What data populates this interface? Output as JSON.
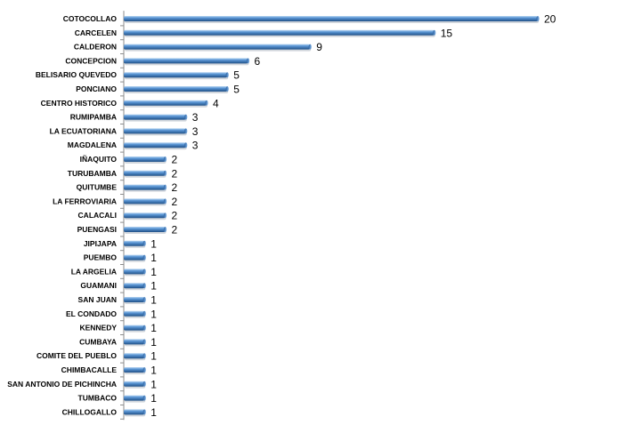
{
  "chart_data": {
    "type": "bar",
    "orientation": "horizontal",
    "categories": [
      "COTOCOLLAO",
      "CARCELEN",
      "CALDERON",
      "CONCEPCION",
      "BELISARIO QUEVEDO",
      "PONCIANO",
      "CENTRO HISTORICO",
      "RUMIPAMBA",
      "LA ECUATORIANA",
      "MAGDALENA",
      "IÑAQUITO",
      "TURUBAMBA",
      "QUITUMBE",
      "LA FERROVIARIA",
      "CALACALI",
      "PUENGASI",
      "JIPIJAPA",
      "PUEMBO",
      "LA ARGELIA",
      "GUAMANI",
      "SAN JUAN",
      "EL CONDADO",
      "KENNEDY",
      "CUMBAYA",
      "COMITE DEL PUEBLO",
      "CHIMBACALLE",
      "SAN ANTONIO DE PICHINCHA",
      "TUMBACO",
      "CHILLOGALLO"
    ],
    "values": [
      20,
      15,
      9,
      6,
      5,
      5,
      4,
      3,
      3,
      3,
      2,
      2,
      2,
      2,
      2,
      2,
      1,
      1,
      1,
      1,
      1,
      1,
      1,
      1,
      1,
      1,
      1,
      1,
      1
    ],
    "title": "",
    "xlabel": "",
    "ylabel": "",
    "xlim": [
      0,
      20
    ],
    "grid": false,
    "legend": "none",
    "data_labels": true,
    "colors": {
      "bar_light": "#9cc3ea",
      "bar_mid": "#4a86c8",
      "bar_dark": "#1f4f86",
      "axis": "#8c8c8c"
    }
  }
}
